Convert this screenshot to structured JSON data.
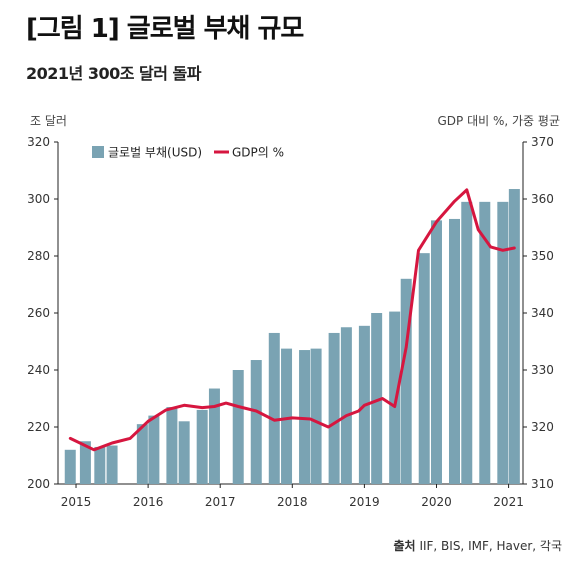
{
  "title": "[그림 1] 글로벌 부채 규모",
  "subtitle": "2021년 300조 달러 돌파",
  "left_axis_title": "조 달러",
  "right_axis_title": "GDP 대비 %, 가중 평균",
  "source": {
    "label": "출처",
    "text": "IIF, BIS, IMF, Haver, 각국"
  },
  "colors": {
    "bar": "#7aa3b3",
    "line": "#d6163f",
    "axis": "#222222"
  },
  "chart_data": {
    "type": "bar+line",
    "title": "",
    "x_ticks": [
      "2015",
      "2016",
      "2017",
      "2018",
      "2019",
      "2020",
      "2021"
    ],
    "left_ylim": [
      200,
      320
    ],
    "left_ticks": [
      200,
      220,
      240,
      260,
      280,
      300,
      320
    ],
    "right_ylim": [
      310,
      370
    ],
    "right_ticks": [
      310,
      320,
      330,
      340,
      350,
      360,
      370
    ],
    "legend": [
      {
        "name": "글로벌 부채(USD)",
        "kind": "square"
      },
      {
        "name": "GDP의 %",
        "kind": "line"
      }
    ],
    "x_range": [
      2014.75,
      2021.2
    ],
    "bars": {
      "name": "글로벌 부채(USD)",
      "axis": "left",
      "x": [
        2014.92,
        2015.13,
        2015.33,
        2015.5,
        2015.92,
        2016.08,
        2016.33,
        2016.5,
        2016.75,
        2016.92,
        2017.25,
        2017.5,
        2017.75,
        2017.92,
        2018.17,
        2018.33,
        2018.58,
        2018.75,
        2019.0,
        2019.17,
        2019.42,
        2019.58,
        2019.83,
        2020.0,
        2020.25,
        2020.42,
        2020.67,
        2020.92,
        2021.08
      ],
      "values": [
        212,
        215,
        213,
        213.5,
        221,
        224,
        227,
        222,
        226,
        233.5,
        240,
        243.5,
        253,
        247.5,
        247,
        247.5,
        253,
        255,
        255.5,
        260,
        260.5,
        272,
        281,
        292.5,
        293,
        299,
        299,
        299,
        303.5
      ]
    },
    "line": {
      "name": "GDP의 %",
      "axis": "right",
      "x": [
        2014.92,
        2015.25,
        2015.5,
        2015.75,
        2016.0,
        2016.25,
        2016.5,
        2016.75,
        2016.92,
        2017.08,
        2017.25,
        2017.5,
        2017.75,
        2018.0,
        2018.25,
        2018.5,
        2018.75,
        2018.92,
        2019.0,
        2019.25,
        2019.42,
        2019.58,
        2019.75,
        2020.0,
        2020.25,
        2020.42,
        2020.58,
        2020.75,
        2020.92,
        2021.08
      ],
      "values": [
        318,
        316,
        317.2,
        318,
        321,
        323,
        323.8,
        323.4,
        323.6,
        324.2,
        323.6,
        322.8,
        321.2,
        321.6,
        321.4,
        320,
        322,
        322.8,
        323.8,
        325,
        323.6,
        334,
        351,
        356,
        359.6,
        361.6,
        354.6,
        351.6,
        351,
        351.4
      ]
    }
  }
}
